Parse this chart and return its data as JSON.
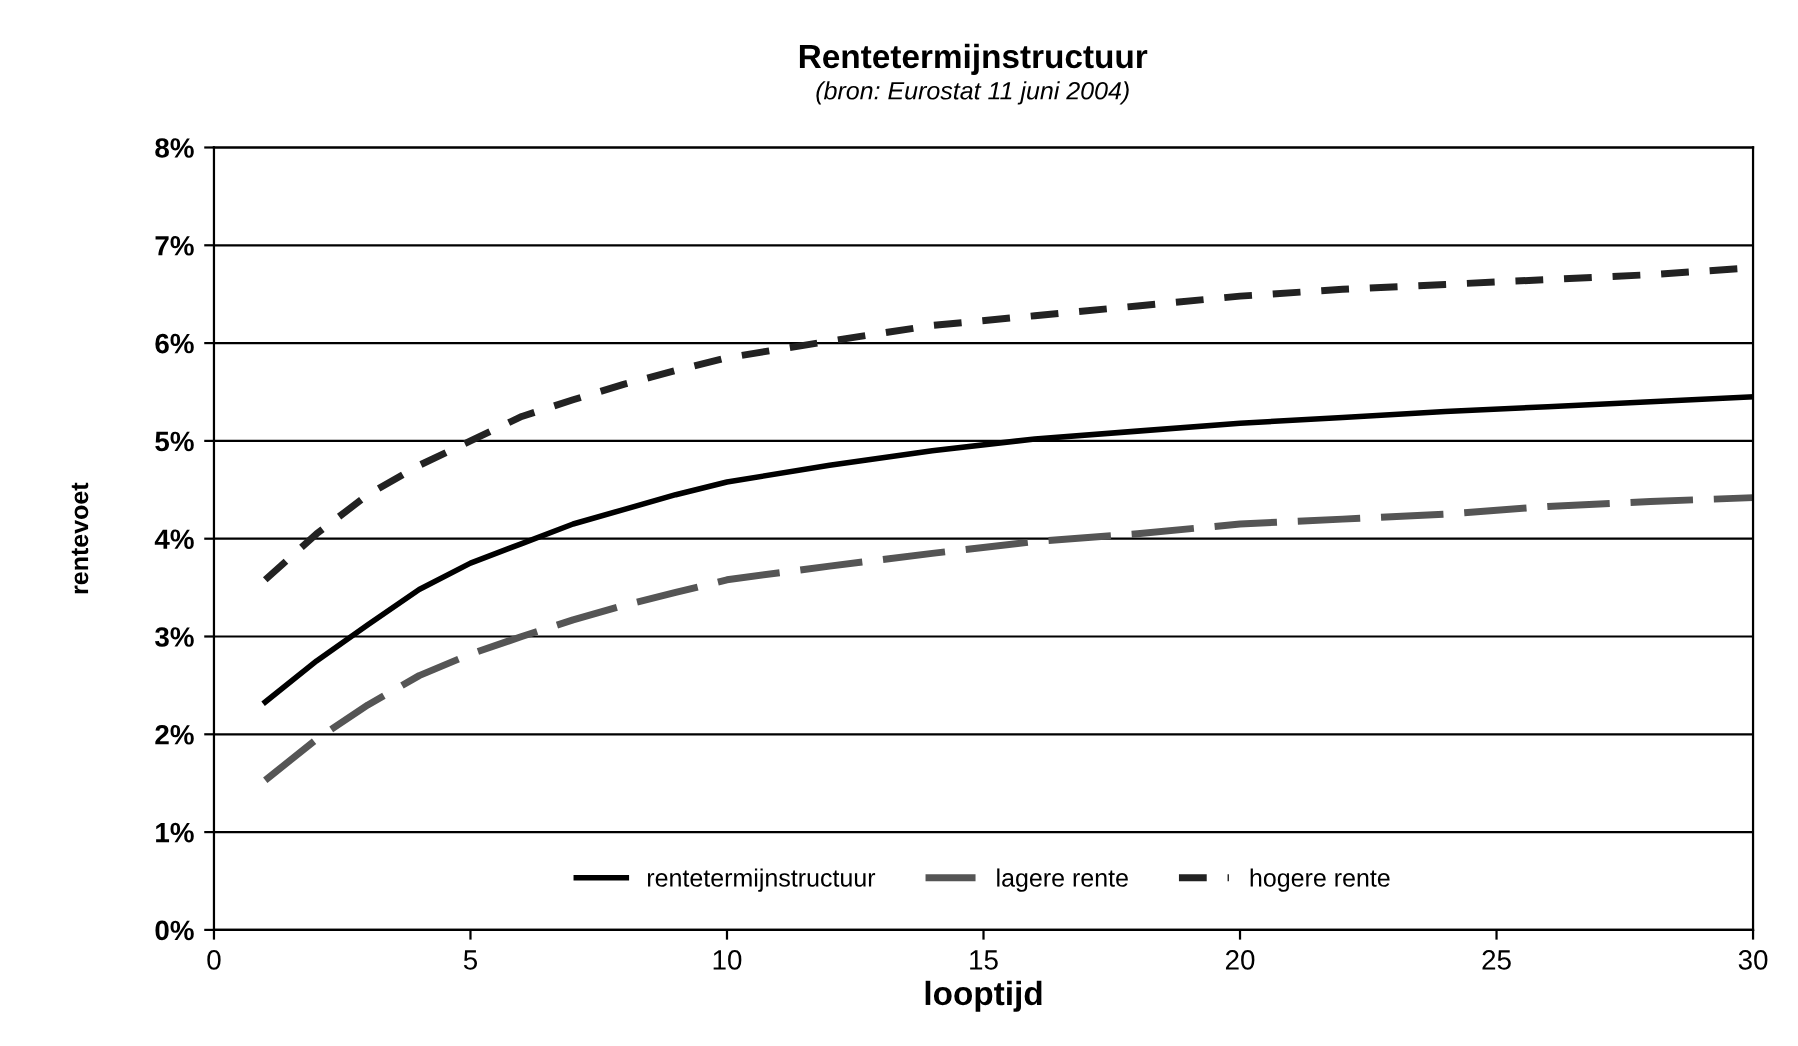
{
  "chart_data": {
    "type": "line",
    "title": "Rentetermijnstructuur",
    "subtitle": "(bron: Eurostat 11 juni 2004)",
    "xlabel": "looptijd",
    "ylabel": "rentevoet",
    "x": [
      1,
      2,
      3,
      4,
      5,
      6,
      7,
      8,
      9,
      10,
      12,
      14,
      16,
      18,
      20,
      22,
      24,
      26,
      28,
      30
    ],
    "series": [
      {
        "name": "rentetermijnstructuur",
        "color": "#000000",
        "line_style": "solid",
        "values": [
          2.33,
          2.75,
          3.12,
          3.48,
          3.75,
          3.95,
          4.15,
          4.3,
          4.45,
          4.58,
          4.75,
          4.9,
          5.02,
          5.1,
          5.18,
          5.24,
          5.3,
          5.35,
          5.4,
          5.45
        ]
      },
      {
        "name": "lagere rente",
        "color": "#555555",
        "line_style": "dashed",
        "values": [
          1.53,
          1.95,
          2.3,
          2.6,
          2.82,
          3.0,
          3.17,
          3.32,
          3.45,
          3.58,
          3.72,
          3.85,
          3.97,
          4.05,
          4.15,
          4.2,
          4.25,
          4.33,
          4.38,
          4.42
        ]
      },
      {
        "name": "hogere rente",
        "color": "#222222",
        "line_style": "dotted",
        "values": [
          3.58,
          4.05,
          4.45,
          4.75,
          5.0,
          5.25,
          5.42,
          5.58,
          5.72,
          5.85,
          6.02,
          6.18,
          6.28,
          6.38,
          6.48,
          6.55,
          6.6,
          6.65,
          6.7,
          6.77
        ]
      }
    ],
    "xlim": [
      0,
      30
    ],
    "xticks": [
      0,
      5,
      10,
      15,
      20,
      25,
      30
    ],
    "ylim": [
      0,
      8
    ],
    "yticks": [
      {
        "value": 0,
        "label": "0%"
      },
      {
        "value": 1,
        "label": "1%"
      },
      {
        "value": 2,
        "label": "2%"
      },
      {
        "value": 3,
        "label": "3%"
      },
      {
        "value": 4,
        "label": "4%"
      },
      {
        "value": 5,
        "label": "5%"
      },
      {
        "value": 6,
        "label": "6%"
      },
      {
        "value": 7,
        "label": "7%"
      },
      {
        "value": 8,
        "label": "8%"
      }
    ],
    "grid": "y",
    "legend": "bottom",
    "marker": "none"
  }
}
